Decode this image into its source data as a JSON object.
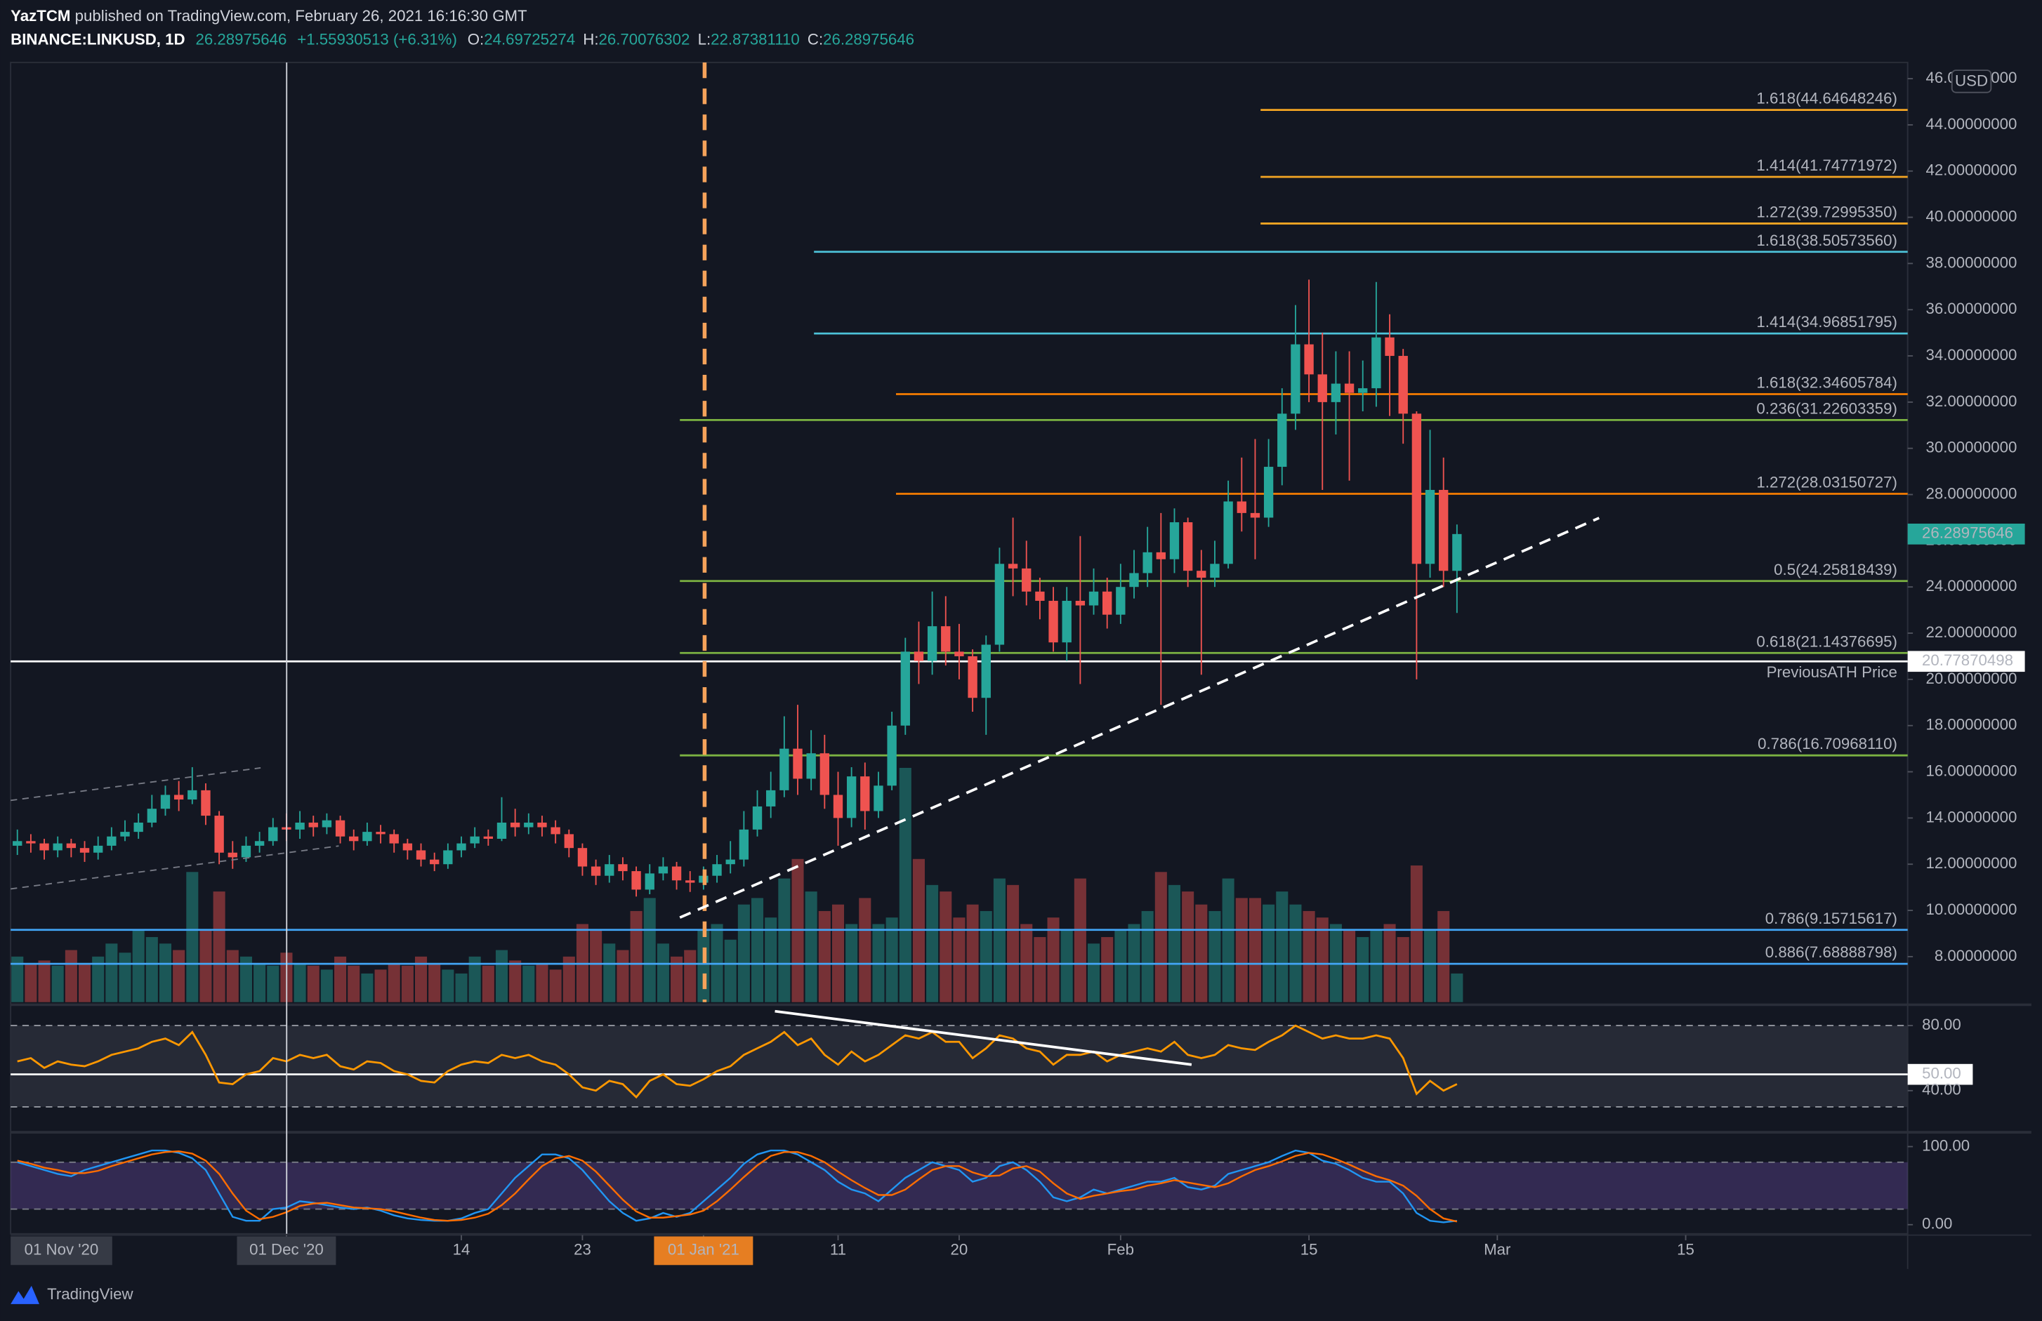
{
  "header": {
    "author": "YazTCM",
    "published": "published on TradingView.com, February 26, 2021 16:16:30 GMT",
    "symbol": "BINANCE:LINKUSD, 1D",
    "price": "26.28975646",
    "change": "+1.55930513 (+6.31%)",
    "ohlc": [
      [
        "O:",
        "24.69725274"
      ],
      [
        "H:",
        "26.70076302"
      ],
      [
        "L:",
        "22.87381110"
      ],
      [
        "C:",
        "26.28975646"
      ]
    ]
  },
  "chart_data": {
    "type": "candlestick",
    "currency": "USD",
    "x_edge_label": "01 Nov '20",
    "xlim": [
      -0.5,
      140.5
    ],
    "xticks": [
      {
        "value": 20,
        "label": "01 Dec '20"
      },
      {
        "value": 33,
        "label": "14"
      },
      {
        "value": 42,
        "label": "23"
      },
      {
        "value": 51,
        "label": "01 Jan '21"
      },
      {
        "value": 61,
        "label": "11"
      },
      {
        "value": 70,
        "label": "20"
      },
      {
        "value": 82,
        "label": "Feb"
      },
      {
        "value": 96,
        "label": "15"
      },
      {
        "value": 110,
        "label": "Mar"
      },
      {
        "value": 124,
        "label": "15"
      }
    ],
    "ylim": [
      6.03,
      46.7
    ],
    "yticks": [
      {
        "value": 8,
        "label": "8.00000000"
      },
      {
        "value": 10,
        "label": "10.00000000"
      },
      {
        "value": 12,
        "label": "12.00000000"
      },
      {
        "value": 14,
        "label": "14.00000000"
      },
      {
        "value": 16,
        "label": "16.00000000"
      },
      {
        "value": 18,
        "label": "18.00000000"
      },
      {
        "value": 20,
        "label": "20.00000000"
      },
      {
        "value": 22,
        "label": "22.00000000"
      },
      {
        "value": 24,
        "label": "24.00000000"
      },
      {
        "value": 26,
        "label": "26.00000000"
      },
      {
        "value": 28,
        "label": "28.00000000"
      },
      {
        "value": 30,
        "label": "30.00000000"
      },
      {
        "value": 32,
        "label": "32.00000000"
      },
      {
        "value": 34,
        "label": "34.00000000"
      },
      {
        "value": 36,
        "label": "36.00000000"
      },
      {
        "value": 38,
        "label": "38.00000000"
      },
      {
        "value": 40,
        "label": "40.00000000"
      },
      {
        "value": 42,
        "label": "42.00000000"
      },
      {
        "value": 44,
        "label": "44.00000000"
      },
      {
        "value": 46,
        "label": "46.00000000"
      }
    ],
    "up_color": "#26a69a",
    "down_color": "#ef5350",
    "open": [
      12.8,
      13.0,
      12.9,
      12.6,
      12.9,
      12.7,
      12.5,
      12.8,
      13.2,
      13.4,
      13.8,
      14.4,
      15.0,
      14.8,
      15.2,
      14.1,
      12.5,
      12.3,
      12.8,
      13.0,
      13.6,
      13.5,
      13.8,
      13.6,
      13.9,
      13.2,
      13.0,
      13.4,
      13.3,
      12.9,
      12.6,
      12.2,
      12.0,
      12.6,
      12.9,
      13.2,
      13.1,
      13.8,
      13.6,
      13.8,
      13.6,
      13.3,
      12.7,
      11.9,
      11.5,
      12.0,
      11.7,
      10.9,
      11.6,
      11.9,
      11.3,
      11.2,
      11.5,
      12.0,
      12.2,
      13.5,
      14.5,
      15.2,
      17.0,
      15.7,
      16.8,
      15.0,
      14.0,
      15.8,
      14.3,
      15.4,
      18.0,
      21.2,
      20.8,
      22.3,
      21.2,
      21.0,
      19.2,
      21.5,
      25.0,
      24.8,
      23.8,
      23.4,
      21.6,
      23.4,
      23.2,
      23.8,
      22.8,
      24.0,
      24.6,
      25.5,
      25.2,
      26.8,
      24.7,
      24.4,
      25.0,
      27.7,
      27.2,
      27.0,
      29.2,
      31.5,
      34.5,
      33.2,
      32.0,
      32.8,
      32.4,
      32.6,
      34.8,
      34.0,
      31.5,
      25.0,
      28.2,
      24.69725274
    ],
    "high": [
      13.5,
      13.3,
      13.1,
      13.2,
      13.1,
      13.0,
      13.2,
      13.6,
      13.9,
      14.2,
      15.0,
      15.4,
      15.6,
      16.2,
      15.5,
      14.3,
      13.0,
      13.2,
      13.4,
      14.0,
      14.2,
      14.3,
      14.1,
      14.2,
      14.1,
      13.5,
      13.8,
      13.7,
      13.5,
      13.1,
      12.9,
      12.5,
      12.9,
      13.2,
      13.6,
      13.5,
      14.9,
      14.4,
      14.2,
      14.1,
      13.9,
      13.5,
      12.9,
      12.2,
      12.4,
      12.3,
      11.9,
      12.0,
      12.3,
      12.1,
      11.7,
      11.9,
      12.4,
      13.0,
      14.3,
      15.2,
      16.0,
      18.4,
      18.9,
      17.8,
      17.6,
      16.0,
      16.2,
      16.4,
      16.0,
      18.6,
      21.8,
      22.5,
      23.8,
      23.6,
      22.4,
      21.3,
      21.9,
      25.7,
      27.0,
      26.0,
      24.4,
      24.0,
      24.0,
      26.2,
      24.8,
      24.4,
      25.0,
      25.6,
      26.6,
      27.2,
      27.4,
      27.0,
      25.6,
      26.0,
      28.6,
      29.6,
      30.4,
      30.4,
      32.6,
      36.2,
      37.3,
      35.0,
      34.2,
      34.2,
      33.8,
      37.2,
      35.8,
      34.3,
      31.6,
      30.8,
      29.6,
      26.70076302
    ],
    "low": [
      12.4,
      12.5,
      12.2,
      12.3,
      12.3,
      12.1,
      12.2,
      12.6,
      13.0,
      13.1,
      13.6,
      14.1,
      14.3,
      14.6,
      13.7,
      12.0,
      11.8,
      12.1,
      12.5,
      12.8,
      13.0,
      13.1,
      13.2,
      13.3,
      12.9,
      12.6,
      12.8,
      12.9,
      12.5,
      12.2,
      11.9,
      11.7,
      11.8,
      12.3,
      12.7,
      12.8,
      13.0,
      13.2,
      13.3,
      13.2,
      12.9,
      12.3,
      11.5,
      11.1,
      11.2,
      11.3,
      10.6,
      10.7,
      11.3,
      10.9,
      10.8,
      10.9,
      11.2,
      11.6,
      11.9,
      13.2,
      14.0,
      14.9,
      15.0,
      15.2,
      14.4,
      12.8,
      13.6,
      13.5,
      14.0,
      15.2,
      17.6,
      19.8,
      20.2,
      20.6,
      20.0,
      18.6,
      17.6,
      21.2,
      23.6,
      23.2,
      22.6,
      21.2,
      20.8,
      19.8,
      22.8,
      22.2,
      22.4,
      23.5,
      24.0,
      18.9,
      24.6,
      24.0,
      20.2,
      24.0,
      24.8,
      26.4,
      25.2,
      26.6,
      28.4,
      30.8,
      32.0,
      28.2,
      30.6,
      28.6,
      31.6,
      31.8,
      31.4,
      30.2,
      20.0,
      24.4,
      24.0,
      22.8738111
    ],
    "close": [
      13.0,
      12.9,
      12.6,
      12.9,
      12.7,
      12.5,
      12.8,
      13.2,
      13.4,
      13.8,
      14.4,
      15.0,
      14.8,
      15.2,
      14.1,
      12.5,
      12.3,
      12.8,
      13.0,
      13.6,
      13.5,
      13.8,
      13.6,
      13.9,
      13.2,
      13.0,
      13.4,
      13.3,
      12.9,
      12.6,
      12.2,
      12.0,
      12.6,
      12.9,
      13.2,
      13.1,
      13.8,
      13.6,
      13.8,
      13.6,
      13.3,
      12.7,
      11.9,
      11.5,
      12.0,
      11.7,
      10.9,
      11.6,
      11.9,
      11.3,
      11.2,
      11.5,
      12.0,
      12.2,
      13.5,
      14.5,
      15.2,
      17.0,
      15.7,
      16.8,
      15.0,
      14.0,
      15.8,
      14.3,
      15.4,
      18.0,
      21.2,
      20.8,
      22.3,
      21.2,
      21.0,
      19.2,
      21.5,
      25.0,
      24.8,
      23.8,
      23.4,
      21.6,
      23.4,
      23.2,
      23.8,
      22.8,
      24.0,
      24.6,
      25.5,
      25.2,
      26.8,
      24.7,
      24.4,
      25.0,
      27.7,
      27.2,
      27.0,
      29.2,
      31.5,
      34.5,
      33.2,
      32.0,
      32.8,
      32.4,
      32.6,
      34.8,
      34.0,
      31.5,
      25.0,
      28.2,
      24.69725274,
      26.28975646
    ],
    "volume": [
      35,
      30,
      32,
      28,
      40,
      30,
      35,
      45,
      38,
      55,
      50,
      45,
      40,
      100,
      55,
      85,
      40,
      35,
      30,
      28,
      38,
      30,
      28,
      25,
      35,
      28,
      22,
      25,
      30,
      28,
      35,
      30,
      25,
      22,
      35,
      28,
      40,
      32,
      28,
      30,
      25,
      35,
      60,
      55,
      45,
      40,
      70,
      80,
      45,
      35,
      40,
      55,
      60,
      48,
      75,
      80,
      65,
      95,
      110,
      85,
      70,
      75,
      60,
      80,
      60,
      65,
      180,
      110,
      90,
      85,
      65,
      75,
      70,
      95,
      90,
      60,
      50,
      65,
      55,
      95,
      45,
      50,
      55,
      60,
      70,
      100,
      90,
      85,
      75,
      70,
      95,
      80,
      80,
      75,
      85,
      75,
      70,
      65,
      60,
      55,
      50,
      55,
      60,
      50,
      105,
      55,
      70,
      22
    ],
    "levels": [
      {
        "value": 44.64648246,
        "label": "1.618(44.64648246)",
        "color": "#f5a623"
      },
      {
        "value": 41.74771972,
        "label": "1.414(41.74771972)",
        "color": "#f5a623"
      },
      {
        "value": 39.7299535,
        "label": "1.272(39.72995350)",
        "color": "#f5a623"
      },
      {
        "value": 38.5057356,
        "label": "1.618(38.50573560)",
        "color": "#4dc3d9"
      },
      {
        "value": 34.96851795,
        "label": "1.414(34.96851795)",
        "color": "#4dc3d9"
      },
      {
        "value": 32.34605784,
        "label": "1.618(32.34605784)",
        "color": "#f57c00"
      },
      {
        "value": 31.22603359,
        "label": "0.236(31.22603359)",
        "color": "#7cb342"
      },
      {
        "value": 28.03150727,
        "label": "1.272(28.03150727)",
        "color": "#f57c00"
      },
      {
        "value": 24.25818439,
        "label": "0.5(24.25818439)",
        "color": "#7cb342"
      },
      {
        "value": 21.14376695,
        "label": "0.618(21.14376695)",
        "color": "#7cb342"
      },
      {
        "value": 16.7096811,
        "label": "0.786(16.70968110)",
        "color": "#7cb342"
      },
      {
        "value": 9.15715617,
        "label": "0.786(9.15715617)",
        "color": "#42a5f5"
      },
      {
        "value": 7.68888798,
        "label": "0.886(7.68888798)",
        "color": "#42a5f5"
      }
    ],
    "previous_ath": {
      "value": 20.77870498,
      "label": "PreviousATH Price"
    },
    "rsi": {
      "color": "#ff9800",
      "ylim": [
        16,
        90.4
      ],
      "yticks": [
        {
          "value": 80,
          "label": "80.00"
        },
        {
          "value": 50,
          "label": "50.00"
        },
        {
          "value": 40,
          "label": "40.00"
        }
      ],
      "band": [
        30,
        80
      ],
      "values": [
        58,
        60,
        54,
        58,
        56,
        55,
        58,
        62,
        64,
        66,
        70,
        72,
        68,
        76,
        62,
        45,
        44,
        50,
        52,
        60,
        58,
        62,
        60,
        62,
        55,
        53,
        58,
        57,
        52,
        50,
        46,
        45,
        52,
        56,
        58,
        57,
        62,
        60,
        62,
        58,
        56,
        50,
        42,
        40,
        46,
        44,
        36,
        46,
        50,
        44,
        43,
        47,
        52,
        55,
        62,
        66,
        70,
        76,
        68,
        72,
        62,
        56,
        64,
        58,
        62,
        68,
        74,
        72,
        76,
        70,
        70,
        60,
        66,
        74,
        72,
        66,
        64,
        56,
        62,
        62,
        64,
        58,
        62,
        64,
        66,
        64,
        70,
        62,
        60,
        62,
        68,
        66,
        65,
        70,
        74,
        80,
        76,
        72,
        74,
        72,
        72,
        74,
        72,
        60,
        38,
        46,
        40,
        44
      ]
    },
    "stoch_rsi": {
      "ylim": [
        -11.7,
        115
      ],
      "yticks": [
        {
          "value": 100,
          "label": "100.00"
        },
        {
          "value": 0,
          "label": "0.00"
        }
      ],
      "band": [
        20,
        80
      ],
      "series": [
        {
          "color": "#2196f3",
          "values": [
            80,
            75,
            70,
            65,
            62,
            70,
            75,
            80,
            85,
            90,
            95,
            95,
            92,
            85,
            70,
            40,
            10,
            5,
            5,
            20,
            22,
            30,
            28,
            25,
            22,
            20,
            22,
            18,
            12,
            8,
            6,
            5,
            5,
            8,
            15,
            20,
            40,
            60,
            75,
            90,
            90,
            85,
            70,
            50,
            30,
            15,
            5,
            8,
            15,
            10,
            15,
            30,
            45,
            60,
            78,
            90,
            95,
            95,
            90,
            80,
            70,
            55,
            45,
            40,
            30,
            45,
            60,
            70,
            80,
            75,
            70,
            55,
            60,
            75,
            80,
            70,
            55,
            35,
            30,
            35,
            45,
            40,
            45,
            50,
            55,
            55,
            60,
            48,
            45,
            50,
            65,
            70,
            75,
            80,
            88,
            95,
            92,
            82,
            78,
            70,
            60,
            55,
            55,
            40,
            15,
            5,
            3,
            5
          ]
        },
        {
          "color": "#ff6d00",
          "values": [
            82,
            78,
            73,
            70,
            66,
            66,
            69,
            75,
            80,
            85,
            90,
            93,
            94,
            91,
            82,
            65,
            40,
            18,
            7,
            10,
            16,
            24,
            27,
            28,
            25,
            22,
            21,
            20,
            17,
            13,
            9,
            6,
            5,
            6,
            9,
            14,
            25,
            40,
            58,
            75,
            85,
            88,
            82,
            68,
            50,
            32,
            17,
            9,
            9,
            11,
            13,
            18,
            30,
            45,
            61,
            76,
            88,
            93,
            93,
            88,
            80,
            68,
            57,
            47,
            38,
            38,
            45,
            58,
            70,
            75,
            75,
            67,
            62,
            63,
            72,
            75,
            68,
            53,
            40,
            33,
            37,
            40,
            43,
            45,
            50,
            53,
            57,
            54,
            51,
            48,
            53,
            62,
            70,
            75,
            81,
            88,
            92,
            90,
            84,
            77,
            69,
            62,
            57,
            50,
            37,
            20,
            8,
            4
          ]
        }
      ]
    }
  },
  "footer": {
    "brand": "TradingView"
  }
}
